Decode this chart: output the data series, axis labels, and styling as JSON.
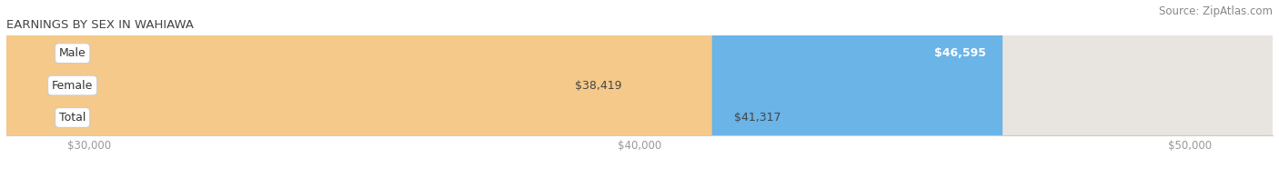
{
  "title": "EARNINGS BY SEX IN WAHIAWA",
  "source": "Source: ZipAtlas.com",
  "categories": [
    "Male",
    "Female",
    "Total"
  ],
  "values": [
    46595,
    38419,
    41317
  ],
  "bar_colors": [
    "#6ab4e8",
    "#f5a8c0",
    "#f5c98a"
  ],
  "bar_bg_color": "#e8e4e0",
  "value_labels": [
    "$46,595",
    "$38,419",
    "$41,317"
  ],
  "value_label_inside": [
    true,
    false,
    false
  ],
  "xlim_min": 28500,
  "xlim_max": 51500,
  "xticks": [
    30000,
    40000,
    50000
  ],
  "xtick_labels": [
    "$30,000",
    "$40,000",
    "$50,000"
  ],
  "title_fontsize": 9.5,
  "source_fontsize": 8.5,
  "bar_label_fontsize": 9,
  "value_fontsize": 9,
  "tick_fontsize": 8.5,
  "bar_height": 0.72,
  "figsize": [
    14.06,
    1.96
  ],
  "dpi": 100
}
